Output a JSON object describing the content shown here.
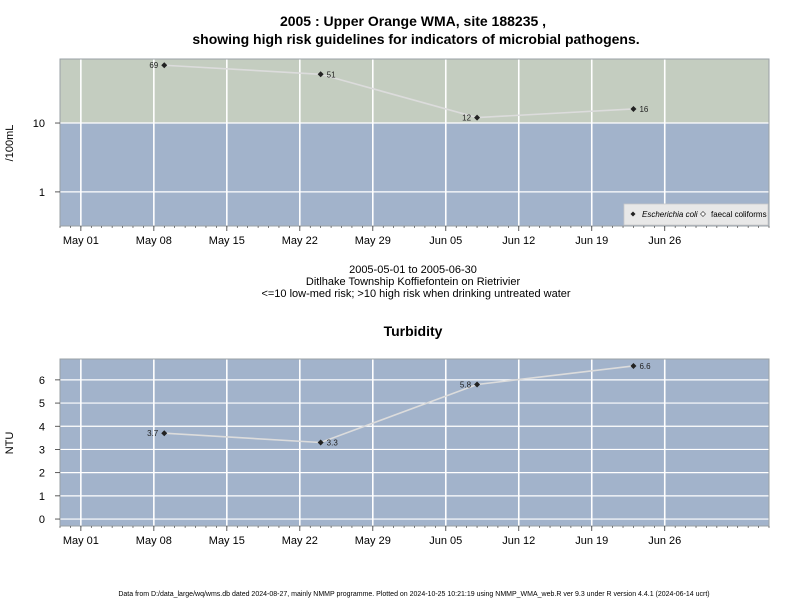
{
  "chart_data": [
    {
      "type": "line",
      "title_line1": "2005 : Upper Orange WMA, site 188235 ,",
      "title_line2": "showing high risk guidelines for indicators of microbial pathogens.",
      "ylabel": "/100mL",
      "y_scale": "log",
      "y_ticks": [
        "1",
        "10"
      ],
      "x_ticks": [
        "May 01",
        "May 08",
        "May 15",
        "May 22",
        "May 29",
        "Jun 05",
        "Jun 12",
        "Jun 19",
        "Jun 26"
      ],
      "x_range": [
        "2005-04-29",
        "2005-07-06"
      ],
      "guideline_threshold": 10,
      "zone_colors": {
        "high_risk": "#c4cdc0",
        "low_med_risk": "#a2b3cb"
      },
      "legend_position": "bottom-right",
      "series": [
        {
          "name": "Escherichia coli",
          "marker": "filled-diamond",
          "x": [
            "2005-05-09",
            "2005-05-24",
            "2005-06-08",
            "2005-06-23"
          ],
          "values": [
            69,
            51,
            12,
            16
          ]
        }
      ],
      "legend": [
        "Escherichia coli",
        "faecal coliforms"
      ],
      "caption": [
        "2005-05-01 to 2005-06-30",
        "Ditlhake Township Koffiefontein on Rietrivier",
        "<=10 low-med risk; >10 high risk when drinking untreated water"
      ]
    },
    {
      "type": "line",
      "title": "Turbidity",
      "ylabel": "NTU",
      "y_ticks": [
        "0",
        "1",
        "2",
        "3",
        "4",
        "5",
        "6"
      ],
      "ylim": [
        -0.3,
        6.9
      ],
      "x_ticks": [
        "May 01",
        "May 08",
        "May 15",
        "May 22",
        "May 29",
        "Jun 05",
        "Jun 12",
        "Jun 19",
        "Jun 26"
      ],
      "x_range": [
        "2005-04-29",
        "2005-07-06"
      ],
      "background": "#a2b3cb",
      "series": [
        {
          "marker": "filled-diamond",
          "x": [
            "2005-05-09",
            "2005-05-24",
            "2005-06-08",
            "2005-06-23"
          ],
          "values": [
            3.7,
            3.3,
            5.8,
            6.6
          ]
        }
      ]
    }
  ],
  "footer": "Data from D:/data_large/wq/wms.db dated 2024-08-27, mainly NMMP programme. Plotted on 2024-10-25 10:21:19 using NMMP_WMA_web.R ver 9.3 under R version 4.4.1 (2024-06-14 ucrt)"
}
